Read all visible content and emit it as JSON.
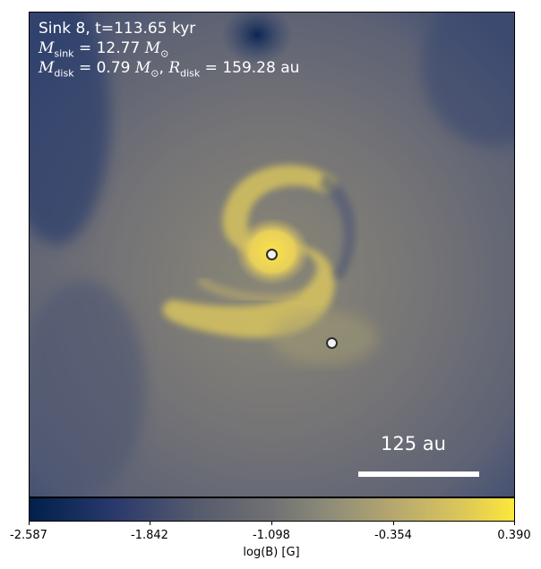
{
  "overlay": {
    "line1": "Sink 8, t=113.65 kyr",
    "m_sink_symbol": "M",
    "m_sink_sub": "sink",
    "m_sink_value": " = 12.77 ",
    "m_disk_symbol": "M",
    "m_disk_sub": "disk",
    "m_disk_value": " = 0.79 ",
    "r_disk_symbol": "R",
    "r_disk_sub": "disk",
    "r_disk_value": " = 159.28 au",
    "solar_mass": "M",
    "solar_sub": "⊙"
  },
  "scale_bar": {
    "label": "125 au"
  },
  "colorbar": {
    "ticks": [
      "-2.587",
      "-1.842",
      "-1.098",
      "-0.354",
      "0.390"
    ],
    "label": "log(B) [G]",
    "colormap": "cividis",
    "min": -2.587,
    "max": 0.39
  },
  "colors": {
    "low": "#00204c",
    "mid": "#707173",
    "high": "#fde838"
  },
  "sinks": [
    "sink-primary",
    "sink-secondary"
  ]
}
